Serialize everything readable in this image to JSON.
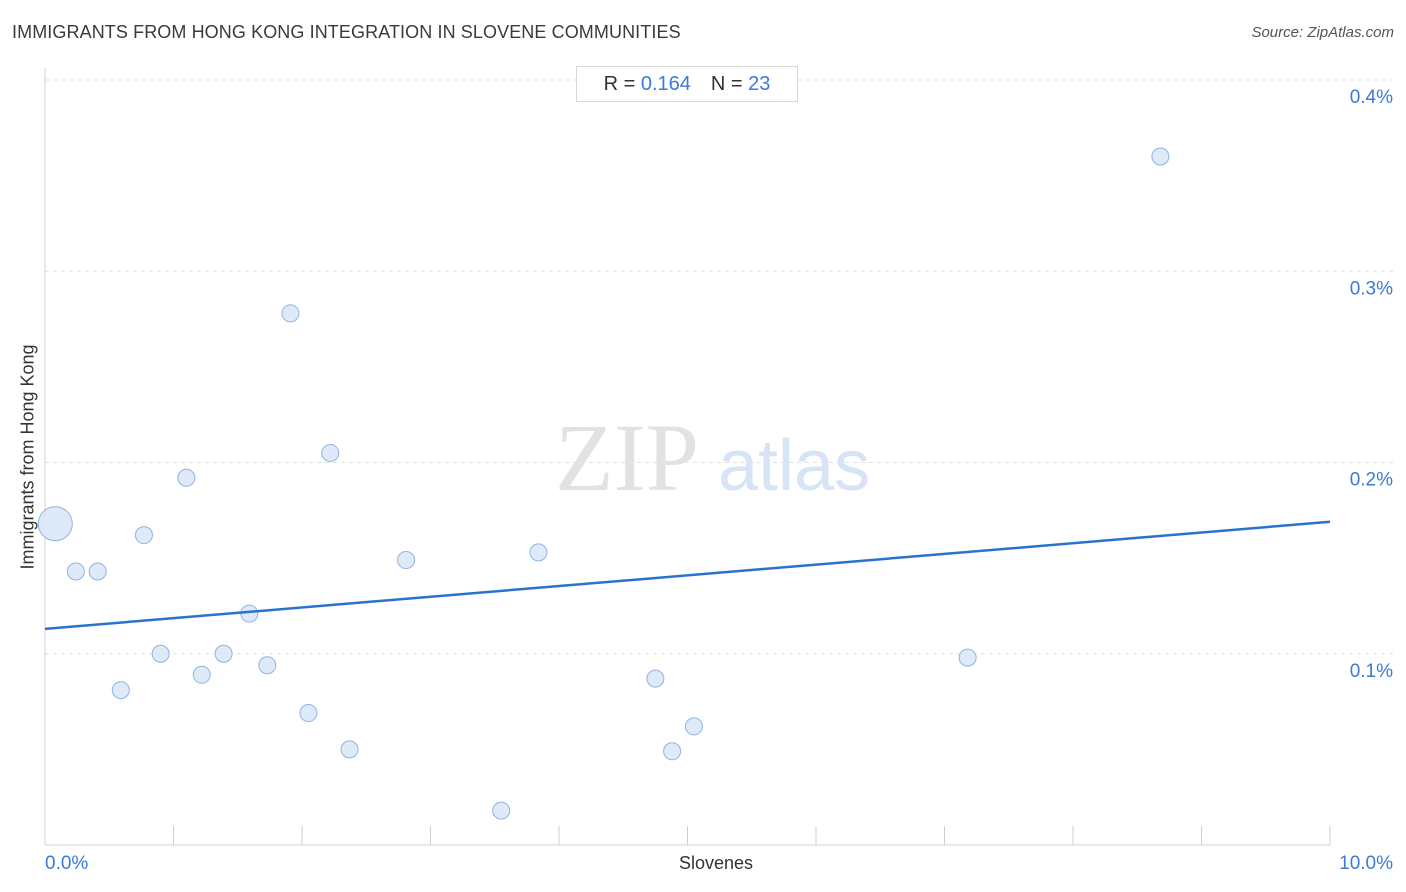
{
  "header": {
    "title": "IMMIGRANTS FROM HONG KONG INTEGRATION IN SLOVENE COMMUNITIES",
    "source": "Source: ZipAtlas.com"
  },
  "stats": {
    "r_label": "R =",
    "r_value": "0.164",
    "n_label": "N =",
    "n_value": "23"
  },
  "watermark": {
    "zip": "ZIP",
    "atlas": "atlas"
  },
  "colors": {
    "point_fill": "#dbe8f8",
    "point_stroke": "#8fb3e3",
    "trend_line": "#2a72d0",
    "tick_text": "#3a7bd5",
    "grid": "#e0e0e0"
  },
  "chart_data": {
    "type": "scatter",
    "title": "IMMIGRANTS FROM HONG KONG INTEGRATION IN SLOVENE COMMUNITIES",
    "xlabel": "Slovenes",
    "ylabel": "Immigrants from Hong Kong",
    "xlim": [
      0,
      10
    ],
    "ylim": [
      0,
      0.4
    ],
    "x_tick_labels": [
      "0.0%",
      "10.0%"
    ],
    "y_ticks": [
      0.1,
      0.2,
      0.3,
      0.4
    ],
    "y_tick_labels": [
      "0.1%",
      "0.2%",
      "0.3%",
      "0.4%"
    ],
    "grid": true,
    "points": [
      {
        "x": 0.08,
        "y": 0.168,
        "size": "large"
      },
      {
        "x": 0.24,
        "y": 0.143
      },
      {
        "x": 0.41,
        "y": 0.143
      },
      {
        "x": 0.59,
        "y": 0.081
      },
      {
        "x": 0.77,
        "y": 0.162
      },
      {
        "x": 0.9,
        "y": 0.1
      },
      {
        "x": 1.1,
        "y": 0.192
      },
      {
        "x": 1.22,
        "y": 0.089
      },
      {
        "x": 1.39,
        "y": 0.1
      },
      {
        "x": 1.59,
        "y": 0.121
      },
      {
        "x": 1.73,
        "y": 0.094
      },
      {
        "x": 1.91,
        "y": 0.278
      },
      {
        "x": 2.05,
        "y": 0.069
      },
      {
        "x": 2.22,
        "y": 0.205
      },
      {
        "x": 2.37,
        "y": 0.05
      },
      {
        "x": 2.81,
        "y": 0.149
      },
      {
        "x": 3.55,
        "y": 0.018
      },
      {
        "x": 3.84,
        "y": 0.153
      },
      {
        "x": 4.75,
        "y": 0.087
      },
      {
        "x": 4.88,
        "y": 0.049
      },
      {
        "x": 5.05,
        "y": 0.062
      },
      {
        "x": 7.18,
        "y": 0.098
      },
      {
        "x": 8.68,
        "y": 0.36
      }
    ],
    "trend_line": {
      "x": [
        0,
        10
      ],
      "y": [
        0.113,
        0.169
      ]
    }
  }
}
